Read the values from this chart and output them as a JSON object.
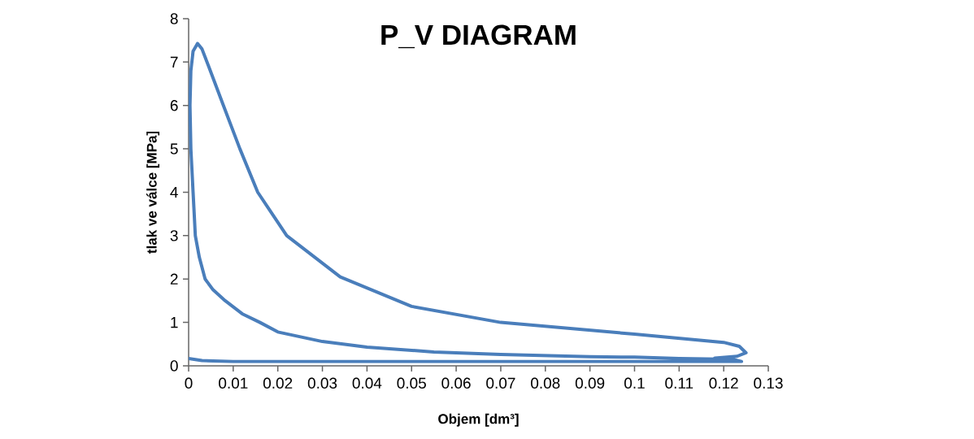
{
  "chart_data": {
    "type": "line",
    "title": "P_V DIAGRAM",
    "xlabel": "Objem [dm³]",
    "ylabel": "tlak ve válce [MPa]",
    "series": [
      {
        "color": "#4a7ebb",
        "x": [
          0,
          0.003,
          0.01,
          0.124,
          0.122,
          0.11,
          0.1,
          0.09,
          0.07,
          0.055,
          0.04,
          0.03,
          0.02,
          0.016,
          0.012,
          0.0082,
          0.0055,
          0.0037,
          0.0024,
          0.0015,
          0.001,
          0.0005,
          0.0003,
          0.0005,
          0.001,
          0.002,
          0.003,
          0.0045,
          0.0078,
          0.0115,
          0.0155,
          0.022,
          0.034,
          0.05,
          0.07,
          0.1,
          0.12,
          0.1235,
          0.125,
          0.123,
          0.118
        ],
        "values": [
          0.17,
          0.12,
          0.1,
          0.1,
          0.15,
          0.17,
          0.2,
          0.21,
          0.26,
          0.32,
          0.43,
          0.56,
          0.78,
          1.0,
          1.2,
          1.5,
          1.75,
          2.0,
          2.5,
          3.0,
          4.0,
          5.0,
          6.0,
          6.8,
          7.25,
          7.43,
          7.3,
          6.9,
          6.0,
          5.0,
          4.0,
          3.0,
          2.05,
          1.37,
          1.0,
          0.73,
          0.54,
          0.45,
          0.3,
          0.22,
          0.18
        ]
      }
    ],
    "xlim": [
      0,
      0.13
    ],
    "ylim": [
      0,
      8
    ],
    "xticks": [
      0,
      0.01,
      0.02,
      0.03,
      0.04,
      0.05,
      0.06,
      0.07,
      0.08,
      0.09,
      0.1,
      0.11,
      0.12,
      0.13
    ],
    "yticks": [
      0,
      1,
      2,
      3,
      4,
      5,
      6,
      7,
      8
    ],
    "grid": false,
    "marker": "none",
    "line_style": "solid"
  }
}
